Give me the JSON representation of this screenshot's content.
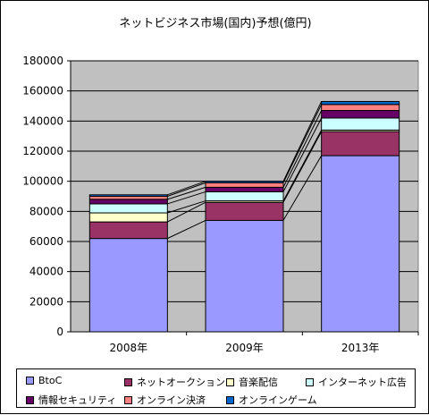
{
  "chart_data": {
    "type": "bar",
    "stacked": true,
    "title": "ネットビジネス市場(国内)予想(億円)",
    "xlabel": "",
    "ylabel": "",
    "categories": [
      "2008年",
      "2009年",
      "2013年"
    ],
    "ylim": [
      0,
      180000
    ],
    "yticks": [
      0,
      20000,
      40000,
      60000,
      80000,
      100000,
      120000,
      140000,
      160000,
      180000
    ],
    "grid": true,
    "legend_position": "bottom",
    "series": [
      {
        "name": "BtoC",
        "color": "#9999ff",
        "values": [
          62000,
          74000,
          117000
        ]
      },
      {
        "name": "ネットオークション",
        "color": "#993366",
        "values": [
          11000,
          12000,
          16000
        ]
      },
      {
        "name": "音楽配信",
        "color": "#ffffcc",
        "values": [
          6000,
          1000,
          1000
        ]
      },
      {
        "name": "インターネット広告",
        "color": "#ccffff",
        "values": [
          6000,
          6000,
          8000
        ]
      },
      {
        "name": "情報セキュリティ",
        "color": "#660066",
        "values": [
          3000,
          3000,
          5000
        ]
      },
      {
        "name": "オンライン決済",
        "color": "#ff8080",
        "values": [
          2000,
          3000,
          4000
        ]
      },
      {
        "name": "オンラインゲーム",
        "color": "#0066cc",
        "values": [
          1000,
          1000,
          2000
        ]
      }
    ]
  }
}
